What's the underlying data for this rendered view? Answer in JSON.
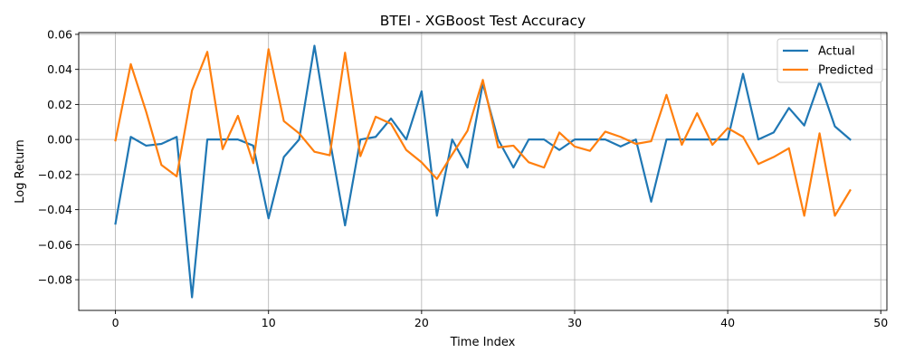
{
  "chart_data": {
    "type": "line",
    "title": "BTEI - XGBoost Test Accuracy",
    "xlabel": "Time Index",
    "ylabel": "Log Return",
    "xlim": [
      -2.4,
      50.4
    ],
    "ylim": [
      -0.0975,
      0.061
    ],
    "xticks": [
      0,
      10,
      20,
      30,
      40,
      50
    ],
    "yticks": [
      -0.08,
      -0.06,
      -0.04,
      -0.02,
      0.0,
      0.02,
      0.04,
      0.06
    ],
    "xtick_labels": [
      "0",
      "10",
      "20",
      "30",
      "40",
      "50"
    ],
    "ytick_labels": [
      "−0.08",
      "−0.06",
      "−0.04",
      "−0.02",
      "0.00",
      "0.02",
      "0.04",
      "0.06"
    ],
    "grid": true,
    "legend_position": "top-right",
    "x": [
      0,
      1,
      2,
      3,
      4,
      5,
      6,
      7,
      8,
      9,
      10,
      11,
      12,
      13,
      14,
      15,
      16,
      17,
      18,
      19,
      20,
      21,
      22,
      23,
      24,
      25,
      26,
      27,
      28,
      29,
      30,
      31,
      32,
      33,
      34,
      35,
      36,
      37,
      38,
      39,
      40,
      41,
      42,
      43,
      44,
      45,
      46,
      47,
      48
    ],
    "series": [
      {
        "name": "Actual",
        "color": "#1f77b4",
        "values": [
          -0.048,
          0.0015,
          -0.0035,
          -0.0025,
          0.0015,
          -0.09,
          0.0,
          0.0,
          0.0,
          -0.0035,
          -0.045,
          -0.01,
          0.0,
          0.0535,
          0.0,
          -0.049,
          0.0,
          0.0015,
          0.012,
          0.0,
          0.0275,
          -0.0435,
          0.0,
          -0.016,
          0.032,
          0.0,
          -0.016,
          0.0,
          0.0,
          -0.006,
          0.0,
          0.0,
          0.0,
          -0.004,
          0.0,
          -0.0355,
          0.0,
          0.0,
          0.0,
          0.0,
          0.0,
          0.0375,
          0.0,
          0.004,
          0.018,
          0.008,
          0.033,
          0.0075,
          0.0
        ]
      },
      {
        "name": "Predicted",
        "color": "#ff7f0e",
        "values": [
          -0.0005,
          0.043,
          0.016,
          -0.0145,
          -0.021,
          0.028,
          0.05,
          -0.0055,
          0.0135,
          -0.0135,
          0.0515,
          0.0105,
          0.0035,
          -0.007,
          -0.009,
          0.0495,
          -0.0095,
          0.013,
          0.009,
          -0.006,
          -0.013,
          -0.0225,
          -0.0085,
          0.005,
          0.034,
          -0.0045,
          -0.0035,
          -0.013,
          -0.016,
          0.004,
          -0.004,
          -0.0065,
          0.0045,
          0.0015,
          -0.0025,
          -0.001,
          0.0255,
          -0.003,
          0.015,
          -0.003,
          0.0065,
          0.0015,
          -0.014,
          -0.01,
          -0.005,
          -0.0435,
          0.0035,
          -0.0435,
          -0.029
        ]
      }
    ]
  }
}
